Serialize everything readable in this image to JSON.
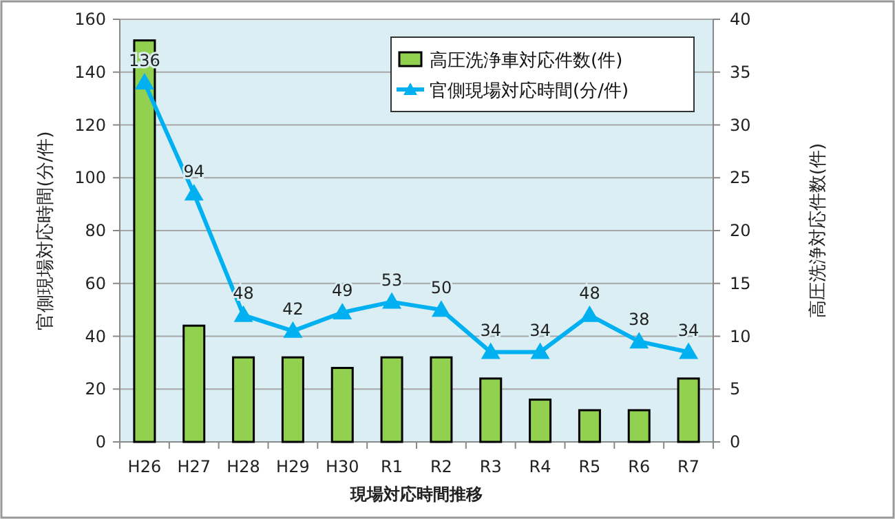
{
  "chart_data": {
    "type": "bar",
    "xlabel": "現場対応時間推移",
    "ylabel": "官側現場対応時間(分/件)",
    "y2label": "高圧洗浄対応件数(件)",
    "categories": [
      "H26",
      "H27",
      "H28",
      "H29",
      "H30",
      "R1",
      "R2",
      "R3",
      "R4",
      "R5",
      "R6",
      "R7"
    ],
    "series": [
      {
        "name": "高圧洗浄車対応件数(件)",
        "axis": "y2",
        "color": "#92d050",
        "values": [
          38,
          11,
          8,
          8,
          7,
          8,
          8,
          6,
          4,
          3,
          3,
          6
        ]
      },
      {
        "name": "官側現場対応時間(分/件)",
        "type": "line",
        "axis": "y",
        "color": "#00b0f0",
        "marker": "triangle",
        "values": [
          136,
          94,
          48,
          42,
          49,
          53,
          50,
          34,
          34,
          48,
          38,
          34
        ],
        "value_labels": [
          "136",
          "94",
          "48",
          "42",
          "49",
          "53",
          "50",
          "34",
          "34",
          "48",
          "38",
          "34"
        ]
      }
    ],
    "ylim": [
      0,
      160
    ],
    "yticks": [
      0,
      20,
      40,
      60,
      80,
      100,
      120,
      140,
      160
    ],
    "y2lim": [
      0,
      40
    ],
    "y2ticks": [
      0,
      5,
      10,
      15,
      20,
      25,
      30,
      35,
      40
    ],
    "grid": "y",
    "legend": "top right"
  }
}
